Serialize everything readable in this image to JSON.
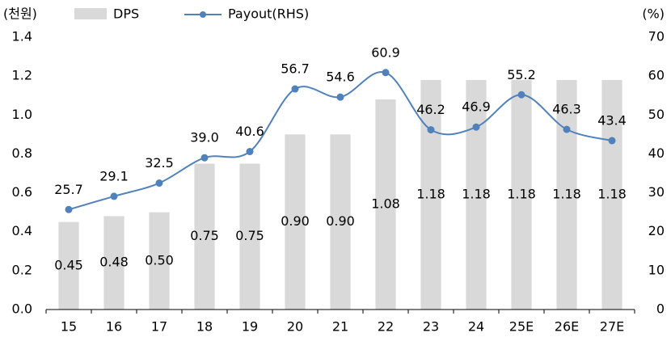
{
  "chart_data": {
    "type": "bar_line",
    "y_label": "(천원)",
    "y2_label": "(%)",
    "categories": [
      "15",
      "16",
      "17",
      "18",
      "19",
      "20",
      "21",
      "22",
      "23",
      "24",
      "25E",
      "26E",
      "27E"
    ],
    "series": [
      {
        "name": "DPS",
        "type": "bar",
        "color": "#d9d9d9",
        "values": [
          0.45,
          0.48,
          0.5,
          0.75,
          0.75,
          0.9,
          0.9,
          1.08,
          1.18,
          1.18,
          1.18,
          1.18,
          1.18
        ],
        "value_labels": [
          "0.45",
          "0.48",
          "0.50",
          "0.75",
          "0.75",
          "0.90",
          "0.90",
          "1.08",
          "1.18",
          "1.18",
          "1.18",
          "1.18",
          "1.18"
        ]
      },
      {
        "name": "Payout(RHS)",
        "type": "line",
        "axis": "y2",
        "color": "#4f81bd",
        "values": [
          25.7,
          29.1,
          32.5,
          39.0,
          40.6,
          56.7,
          54.6,
          60.9,
          46.2,
          46.9,
          55.2,
          46.3,
          43.4
        ],
        "value_labels": [
          "25.7",
          "29.1",
          "32.5",
          "39.0",
          "40.6",
          "56.7",
          "54.6",
          "60.9",
          "46.2",
          "46.9",
          "55.2",
          "46.3",
          "43.4"
        ]
      }
    ],
    "ylim": [
      0,
      1.4
    ],
    "yticks": [
      {
        "value": 0,
        "label": "0.0"
      },
      {
        "value": 0.2,
        "label": "0.2"
      },
      {
        "value": 0.4,
        "label": "0.4"
      },
      {
        "value": 0.6,
        "label": "0.6"
      },
      {
        "value": 0.8,
        "label": "0.8"
      },
      {
        "value": 1.0,
        "label": "1.0"
      },
      {
        "value": 1.2,
        "label": "1.2"
      },
      {
        "value": 1.4,
        "label": "1.4"
      }
    ],
    "y2lim": [
      0,
      70
    ],
    "y2ticks": [
      0,
      10,
      20,
      30,
      40,
      50,
      60,
      70
    ],
    "grid": false,
    "legend": "top"
  }
}
